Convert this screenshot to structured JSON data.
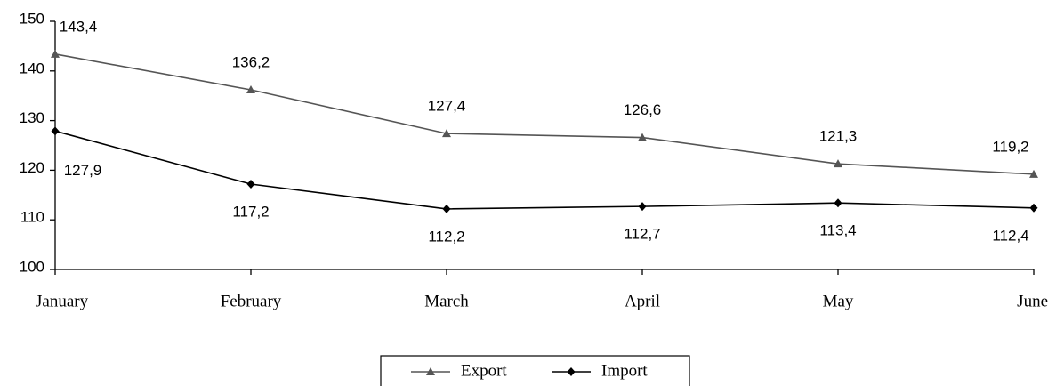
{
  "chart_data": {
    "type": "line",
    "categories": [
      "January",
      "February",
      "March",
      "April",
      "May",
      "June"
    ],
    "series": [
      {
        "name": "Export",
        "color": "#555555",
        "marker": "triangle",
        "values": [
          143.4,
          136.2,
          127.4,
          126.6,
          121.3,
          119.2
        ],
        "value_labels": [
          "143,4",
          "136,2",
          "127,4",
          "126,6",
          "121,3",
          "119,2"
        ]
      },
      {
        "name": "Import",
        "color": "#000000",
        "marker": "diamond",
        "values": [
          127.9,
          117.2,
          112.2,
          112.7,
          113.4,
          112.4
        ],
        "value_labels": [
          "127,9",
          "117,2",
          "112,2",
          "112,7",
          "113,4",
          "112,4"
        ]
      }
    ],
    "ylim": [
      100,
      150
    ],
    "yticks": [
      100,
      110,
      120,
      130,
      140,
      150
    ],
    "grid": false,
    "legend": "bottom"
  }
}
